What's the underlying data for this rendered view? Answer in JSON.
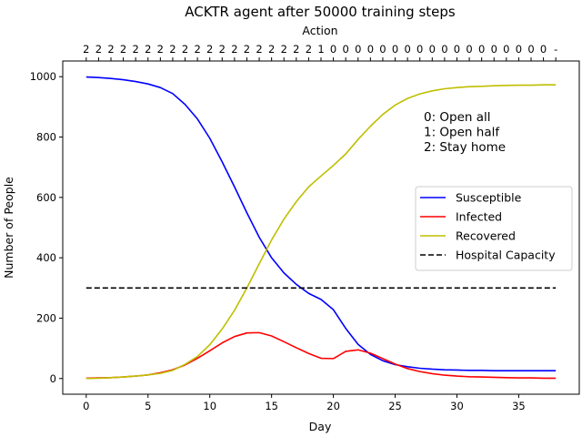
{
  "chart_data": {
    "type": "line",
    "title": "ACKTR agent after 50000 training steps",
    "top_axis_label": "Action",
    "xlabel": "Day",
    "ylabel": "Number of People",
    "xlim": [
      -1.9,
      39.9
    ],
    "ylim": [
      -52,
      1052
    ],
    "xticks": [
      0,
      5,
      10,
      15,
      20,
      25,
      30,
      35
    ],
    "yticks": [
      0,
      200,
      400,
      600,
      800,
      1000
    ],
    "grid": false,
    "legend_position": "center-right",
    "x": [
      0,
      1,
      2,
      3,
      4,
      5,
      6,
      7,
      8,
      9,
      10,
      11,
      12,
      13,
      14,
      15,
      16,
      17,
      18,
      19,
      20,
      21,
      22,
      23,
      24,
      25,
      26,
      27,
      28,
      29,
      30,
      31,
      32,
      33,
      34,
      35,
      36,
      37,
      38
    ],
    "actions": [
      "2",
      "2",
      "2",
      "2",
      "2",
      "2",
      "2",
      "2",
      "2",
      "2",
      "2",
      "2",
      "2",
      "2",
      "2",
      "2",
      "2",
      "2",
      "2",
      "1",
      "0",
      "0",
      "0",
      "0",
      "0",
      "0",
      "0",
      "0",
      "0",
      "0",
      "0",
      "0",
      "0",
      "0",
      "0",
      "0",
      "0",
      "0",
      "-"
    ],
    "action_legend": [
      "0: Open all",
      "1: Open half",
      "2: Stay home"
    ],
    "series": [
      {
        "name": "Susceptible",
        "color": "#0000ff",
        "style": "solid",
        "values": [
          999,
          997,
          994,
          990,
          984,
          976,
          964,
          944,
          908,
          860,
          796,
          718,
          635,
          549,
          468,
          400,
          350,
          312,
          282,
          262,
          228,
          166,
          113,
          80,
          59,
          46,
          39,
          34,
          31,
          29,
          28,
          27,
          27,
          26,
          26,
          26,
          26,
          26,
          26
        ]
      },
      {
        "name": "Infected",
        "color": "#ff0000",
        "style": "solid",
        "values": [
          1,
          2,
          3,
          5,
          8,
          12,
          19,
          29,
          45,
          67,
          92,
          118,
          139,
          151,
          152,
          141,
          122,
          102,
          83,
          67,
          66,
          90,
          95,
          84,
          66,
          48,
          33,
          23,
          16,
          11,
          8,
          6,
          5,
          4,
          3,
          2,
          2,
          1,
          1
        ]
      },
      {
        "name": "Recovered",
        "color": "#bfbf00",
        "style": "solid",
        "values": [
          0,
          1,
          3,
          5,
          8,
          12,
          17,
          27,
          47,
          73,
          112,
          164,
          226,
          300,
          380,
          459,
          528,
          586,
          635,
          671,
          706,
          744,
          792,
          836,
          875,
          906,
          928,
          943,
          953,
          960,
          964,
          967,
          968,
          970,
          971,
          972,
          972,
          973,
          973
        ]
      },
      {
        "name": "Hospital Capacity",
        "color": "#000000",
        "style": "dashed",
        "values": [
          300,
          300,
          300,
          300,
          300,
          300,
          300,
          300,
          300,
          300,
          300,
          300,
          300,
          300,
          300,
          300,
          300,
          300,
          300,
          300,
          300,
          300,
          300,
          300,
          300,
          300,
          300,
          300,
          300,
          300,
          300,
          300,
          300,
          300,
          300,
          300,
          300,
          300,
          300
        ]
      }
    ]
  }
}
